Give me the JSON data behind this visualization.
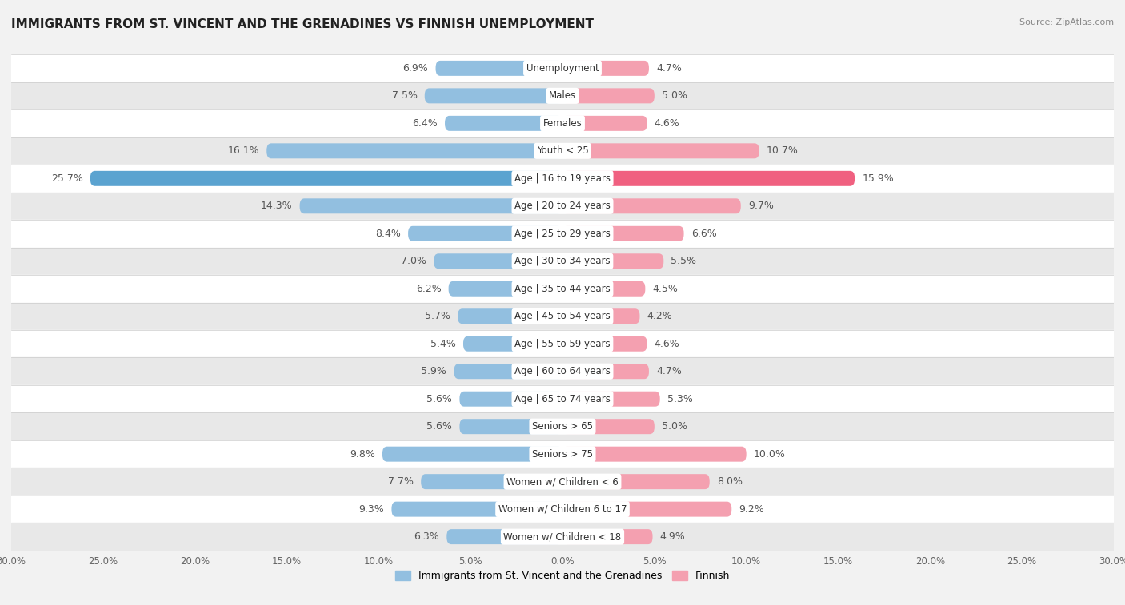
{
  "title": "IMMIGRANTS FROM ST. VINCENT AND THE GRENADINES VS FINNISH UNEMPLOYMENT",
  "source": "Source: ZipAtlas.com",
  "categories": [
    "Unemployment",
    "Males",
    "Females",
    "Youth < 25",
    "Age | 16 to 19 years",
    "Age | 20 to 24 years",
    "Age | 25 to 29 years",
    "Age | 30 to 34 years",
    "Age | 35 to 44 years",
    "Age | 45 to 54 years",
    "Age | 55 to 59 years",
    "Age | 60 to 64 years",
    "Age | 65 to 74 years",
    "Seniors > 65",
    "Seniors > 75",
    "Women w/ Children < 6",
    "Women w/ Children 6 to 17",
    "Women w/ Children < 18"
  ],
  "left_values": [
    6.9,
    7.5,
    6.4,
    16.1,
    25.7,
    14.3,
    8.4,
    7.0,
    6.2,
    5.7,
    5.4,
    5.9,
    5.6,
    5.6,
    9.8,
    7.7,
    9.3,
    6.3
  ],
  "right_values": [
    4.7,
    5.0,
    4.6,
    10.7,
    15.9,
    9.7,
    6.6,
    5.5,
    4.5,
    4.2,
    4.6,
    4.7,
    5.3,
    5.0,
    10.0,
    8.0,
    9.2,
    4.9
  ],
  "left_color": "#92bfe0",
  "right_color": "#f4a0b0",
  "left_color_highlight": "#5ba3d0",
  "right_color_highlight": "#f06080",
  "xlim": 30.0,
  "legend_left": "Immigrants from St. Vincent and the Grenadines",
  "legend_right": "Finnish",
  "bg_color": "#f2f2f2",
  "row_even_color": "#ffffff",
  "row_odd_color": "#e8e8e8",
  "label_color": "#555555",
  "title_color": "#222222",
  "value_fontsize": 9,
  "cat_fontsize": 8.5,
  "title_fontsize": 11
}
